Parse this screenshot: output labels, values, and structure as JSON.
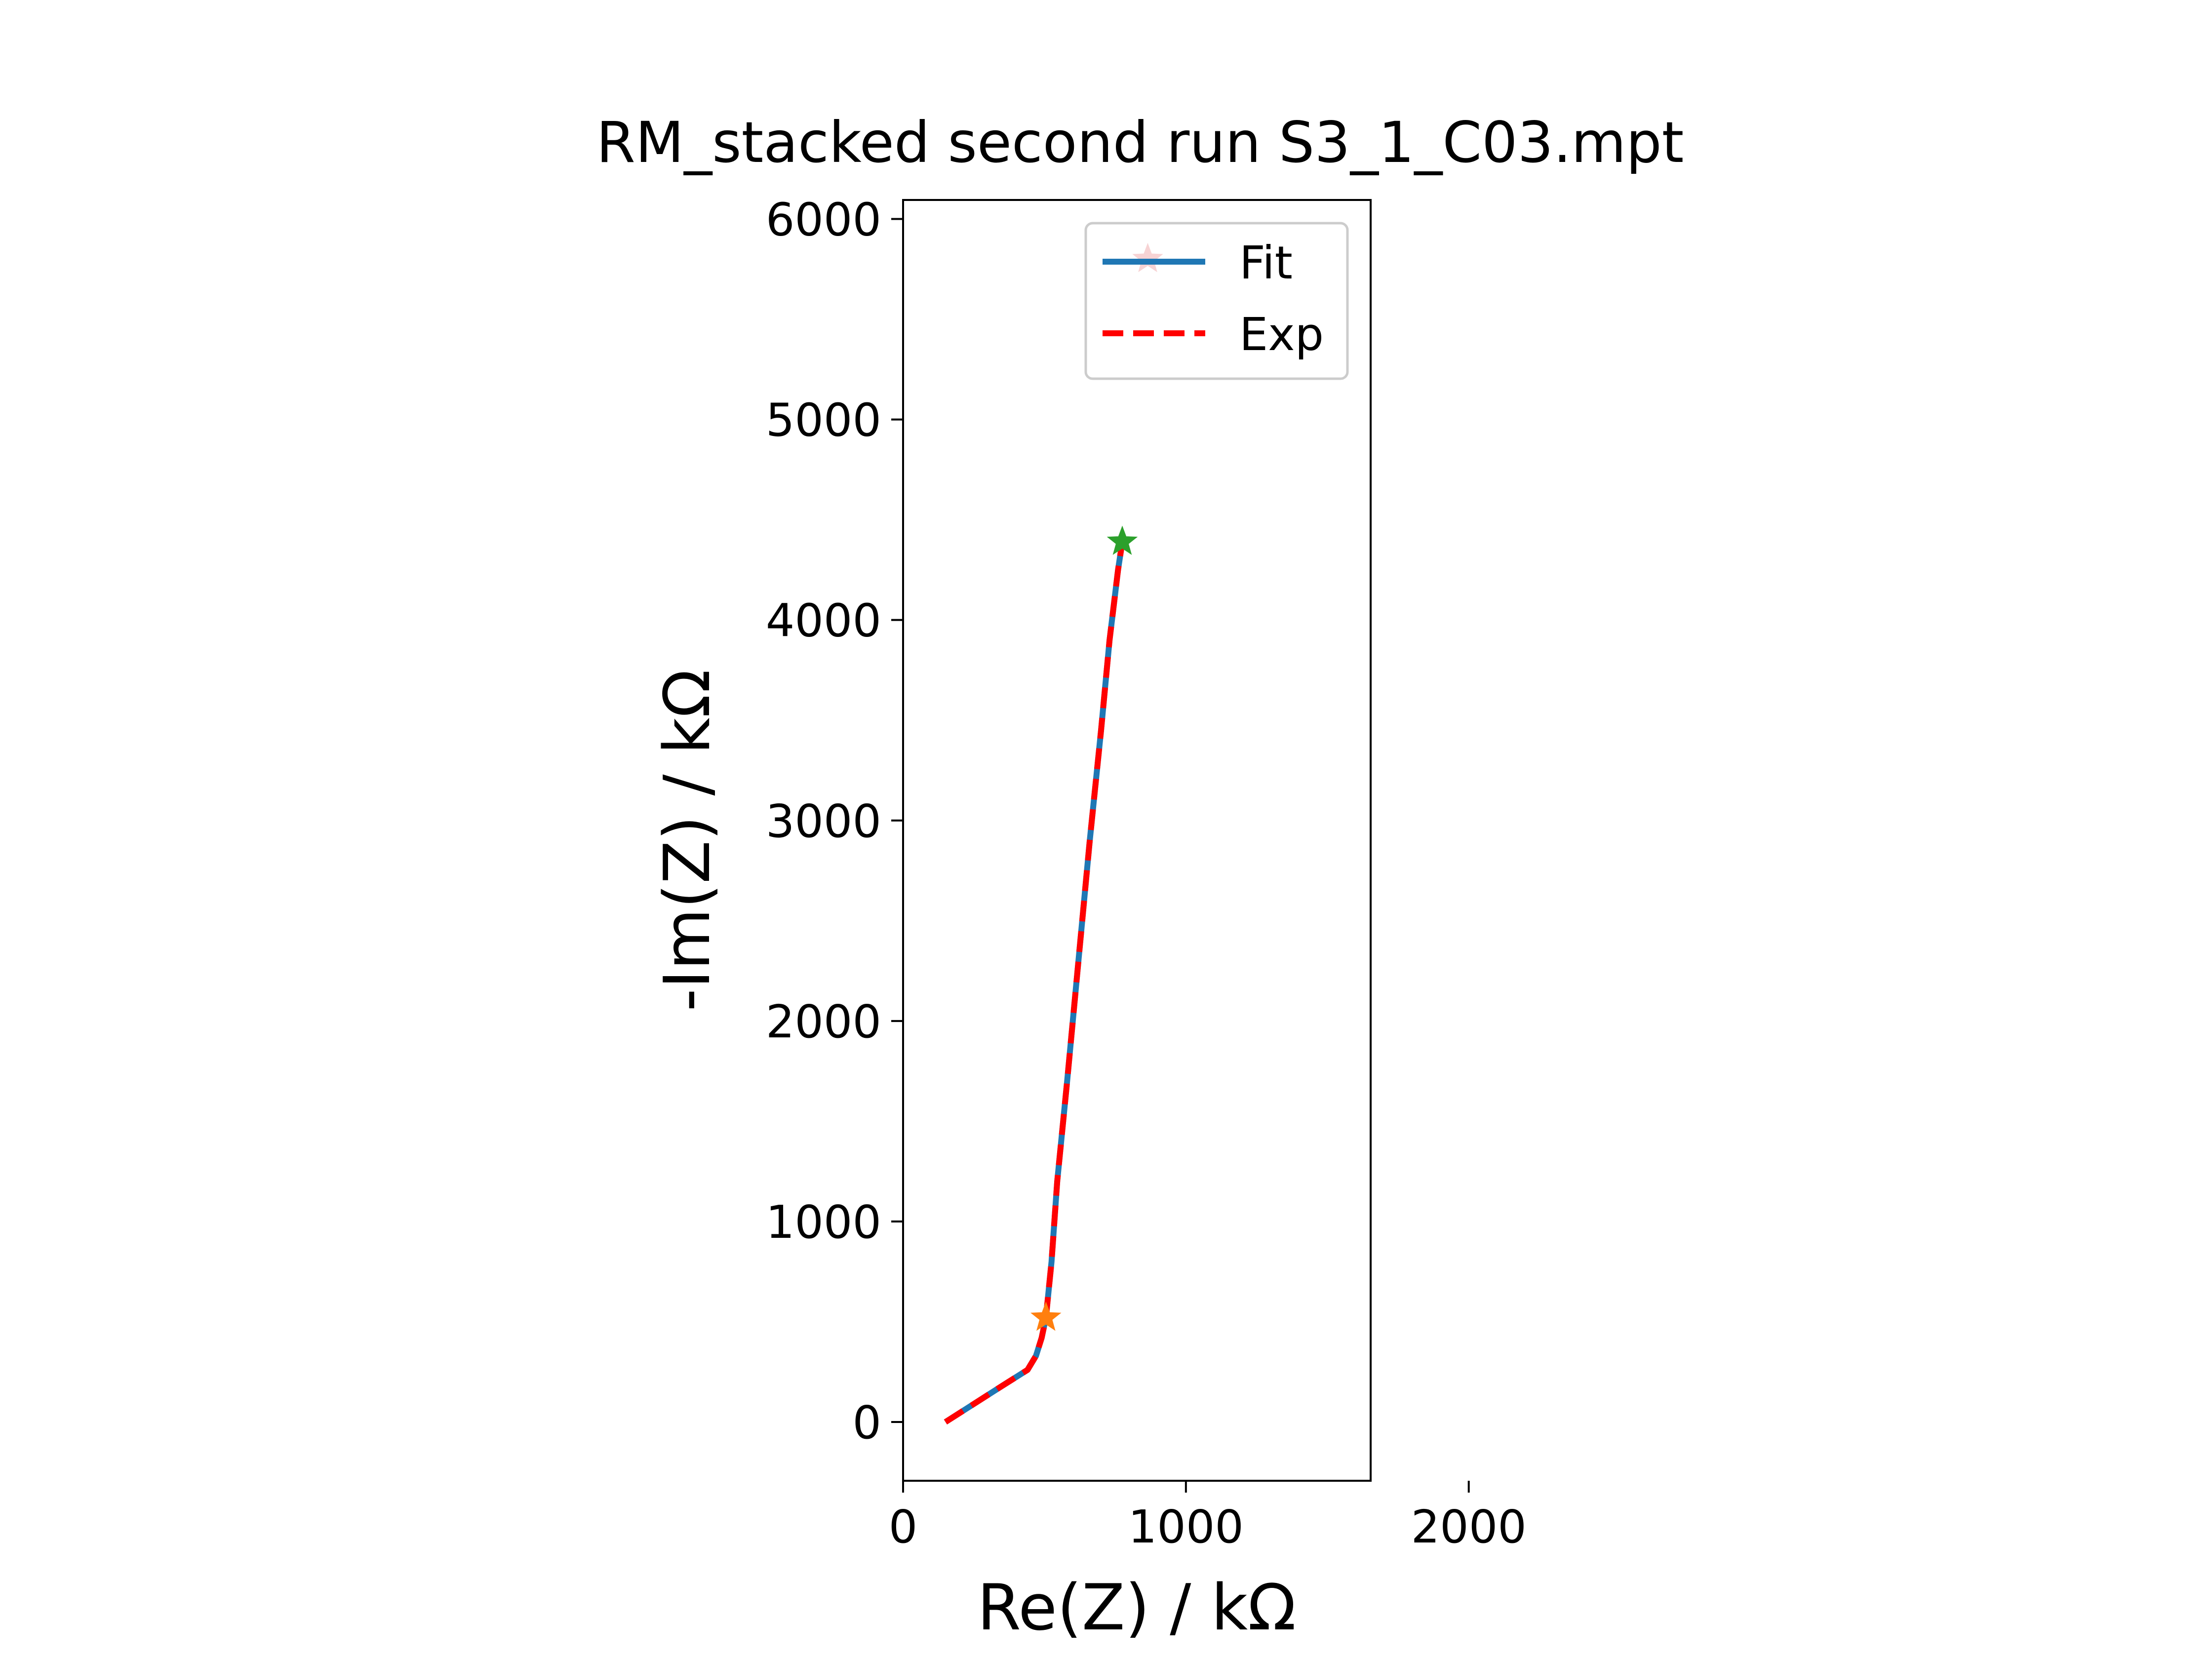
{
  "chart_data": {
    "type": "line",
    "title": "RM_stacked second run S3_1_C03.mpt",
    "xlabel": "Re(Z) / kΩ",
    "ylabel": "-Im(Z) / kΩ",
    "xlim": [
      0,
      2330
    ],
    "ylim": [
      -280,
      6100
    ],
    "xticks": [
      0,
      1000,
      2000
    ],
    "xtick_labels": [
      "0",
      "1000",
      "2000"
    ],
    "yticks": [
      0,
      1000,
      2000,
      3000,
      4000,
      5000,
      6000
    ],
    "ytick_labels": [
      "0",
      "1000",
      "2000",
      "3000",
      "4000",
      "5000",
      "6000"
    ],
    "grid": false,
    "legend_position": "upper right",
    "series": [
      {
        "name": "Fit",
        "color": "#1f77b4",
        "style": "solid",
        "x": [
          150,
          250,
          350,
          440,
          470,
          490,
          505,
          525,
          545,
          580,
          620,
          660,
          700,
          730,
          760,
          775
        ],
        "y": [
          0,
          90,
          180,
          260,
          330,
          420,
          520,
          800,
          1200,
          1700,
          2300,
          2900,
          3450,
          3900,
          4250,
          4390
        ]
      },
      {
        "name": "Exp",
        "color": "#ff0000",
        "style": "dashed",
        "x": [
          150,
          250,
          350,
          440,
          470,
          490,
          505,
          525,
          545,
          580,
          620,
          660,
          700,
          730,
          760,
          775
        ],
        "y": [
          0,
          90,
          180,
          260,
          330,
          420,
          520,
          800,
          1200,
          1700,
          2300,
          2900,
          3450,
          3900,
          4250,
          4390
        ]
      }
    ],
    "markers": [
      {
        "x": 505,
        "y": 520,
        "color": "#ff7f0e",
        "symbol": "star"
      },
      {
        "x": 775,
        "y": 4390,
        "color": "#2ca02c",
        "symbol": "star"
      },
      {
        "x": 865,
        "y": 5800,
        "color": "#d62728",
        "symbol": "star"
      }
    ]
  }
}
